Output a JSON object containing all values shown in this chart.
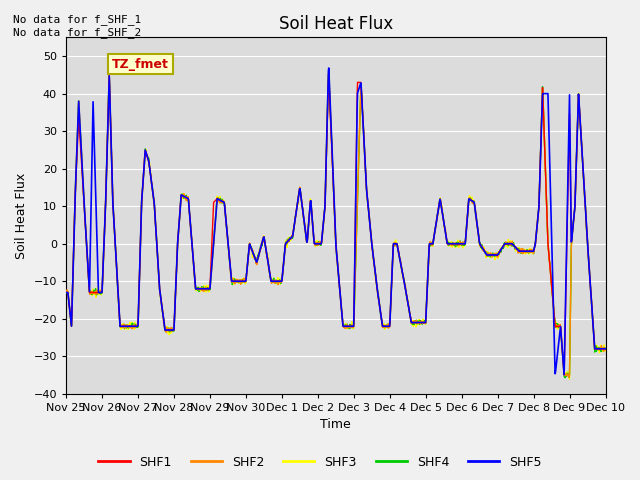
{
  "title": "Soil Heat Flux",
  "ylabel": "Soil Heat Flux",
  "xlabel": "Time",
  "top_left_text": "No data for f_SHF_1\nNo data for f_SHF_2",
  "legend_label": "TZ_fmet",
  "ylim": [
    -40,
    55
  ],
  "yticks": [
    -40,
    -30,
    -20,
    -10,
    0,
    10,
    20,
    30,
    40,
    50
  ],
  "colors": {
    "SHF1": "#ff0000",
    "SHF2": "#ff8800",
    "SHF3": "#ffff00",
    "SHF4": "#00cc00",
    "SHF5": "#0000ff"
  },
  "xtick_labels": [
    "Nov 25",
    "Nov 26",
    "Nov 27",
    "Nov 28",
    "Nov 29",
    "Nov 30",
    "Dec 1",
    "Dec 2",
    "Dec 3",
    "Dec 4",
    "Dec 5",
    "Dec 6",
    "Dec 7",
    "Dec 8",
    "Dec 9",
    "Dec 10"
  ],
  "n_points": 1500,
  "fig_bg": "#f0f0f0",
  "plot_bg": "#dcdcdc"
}
